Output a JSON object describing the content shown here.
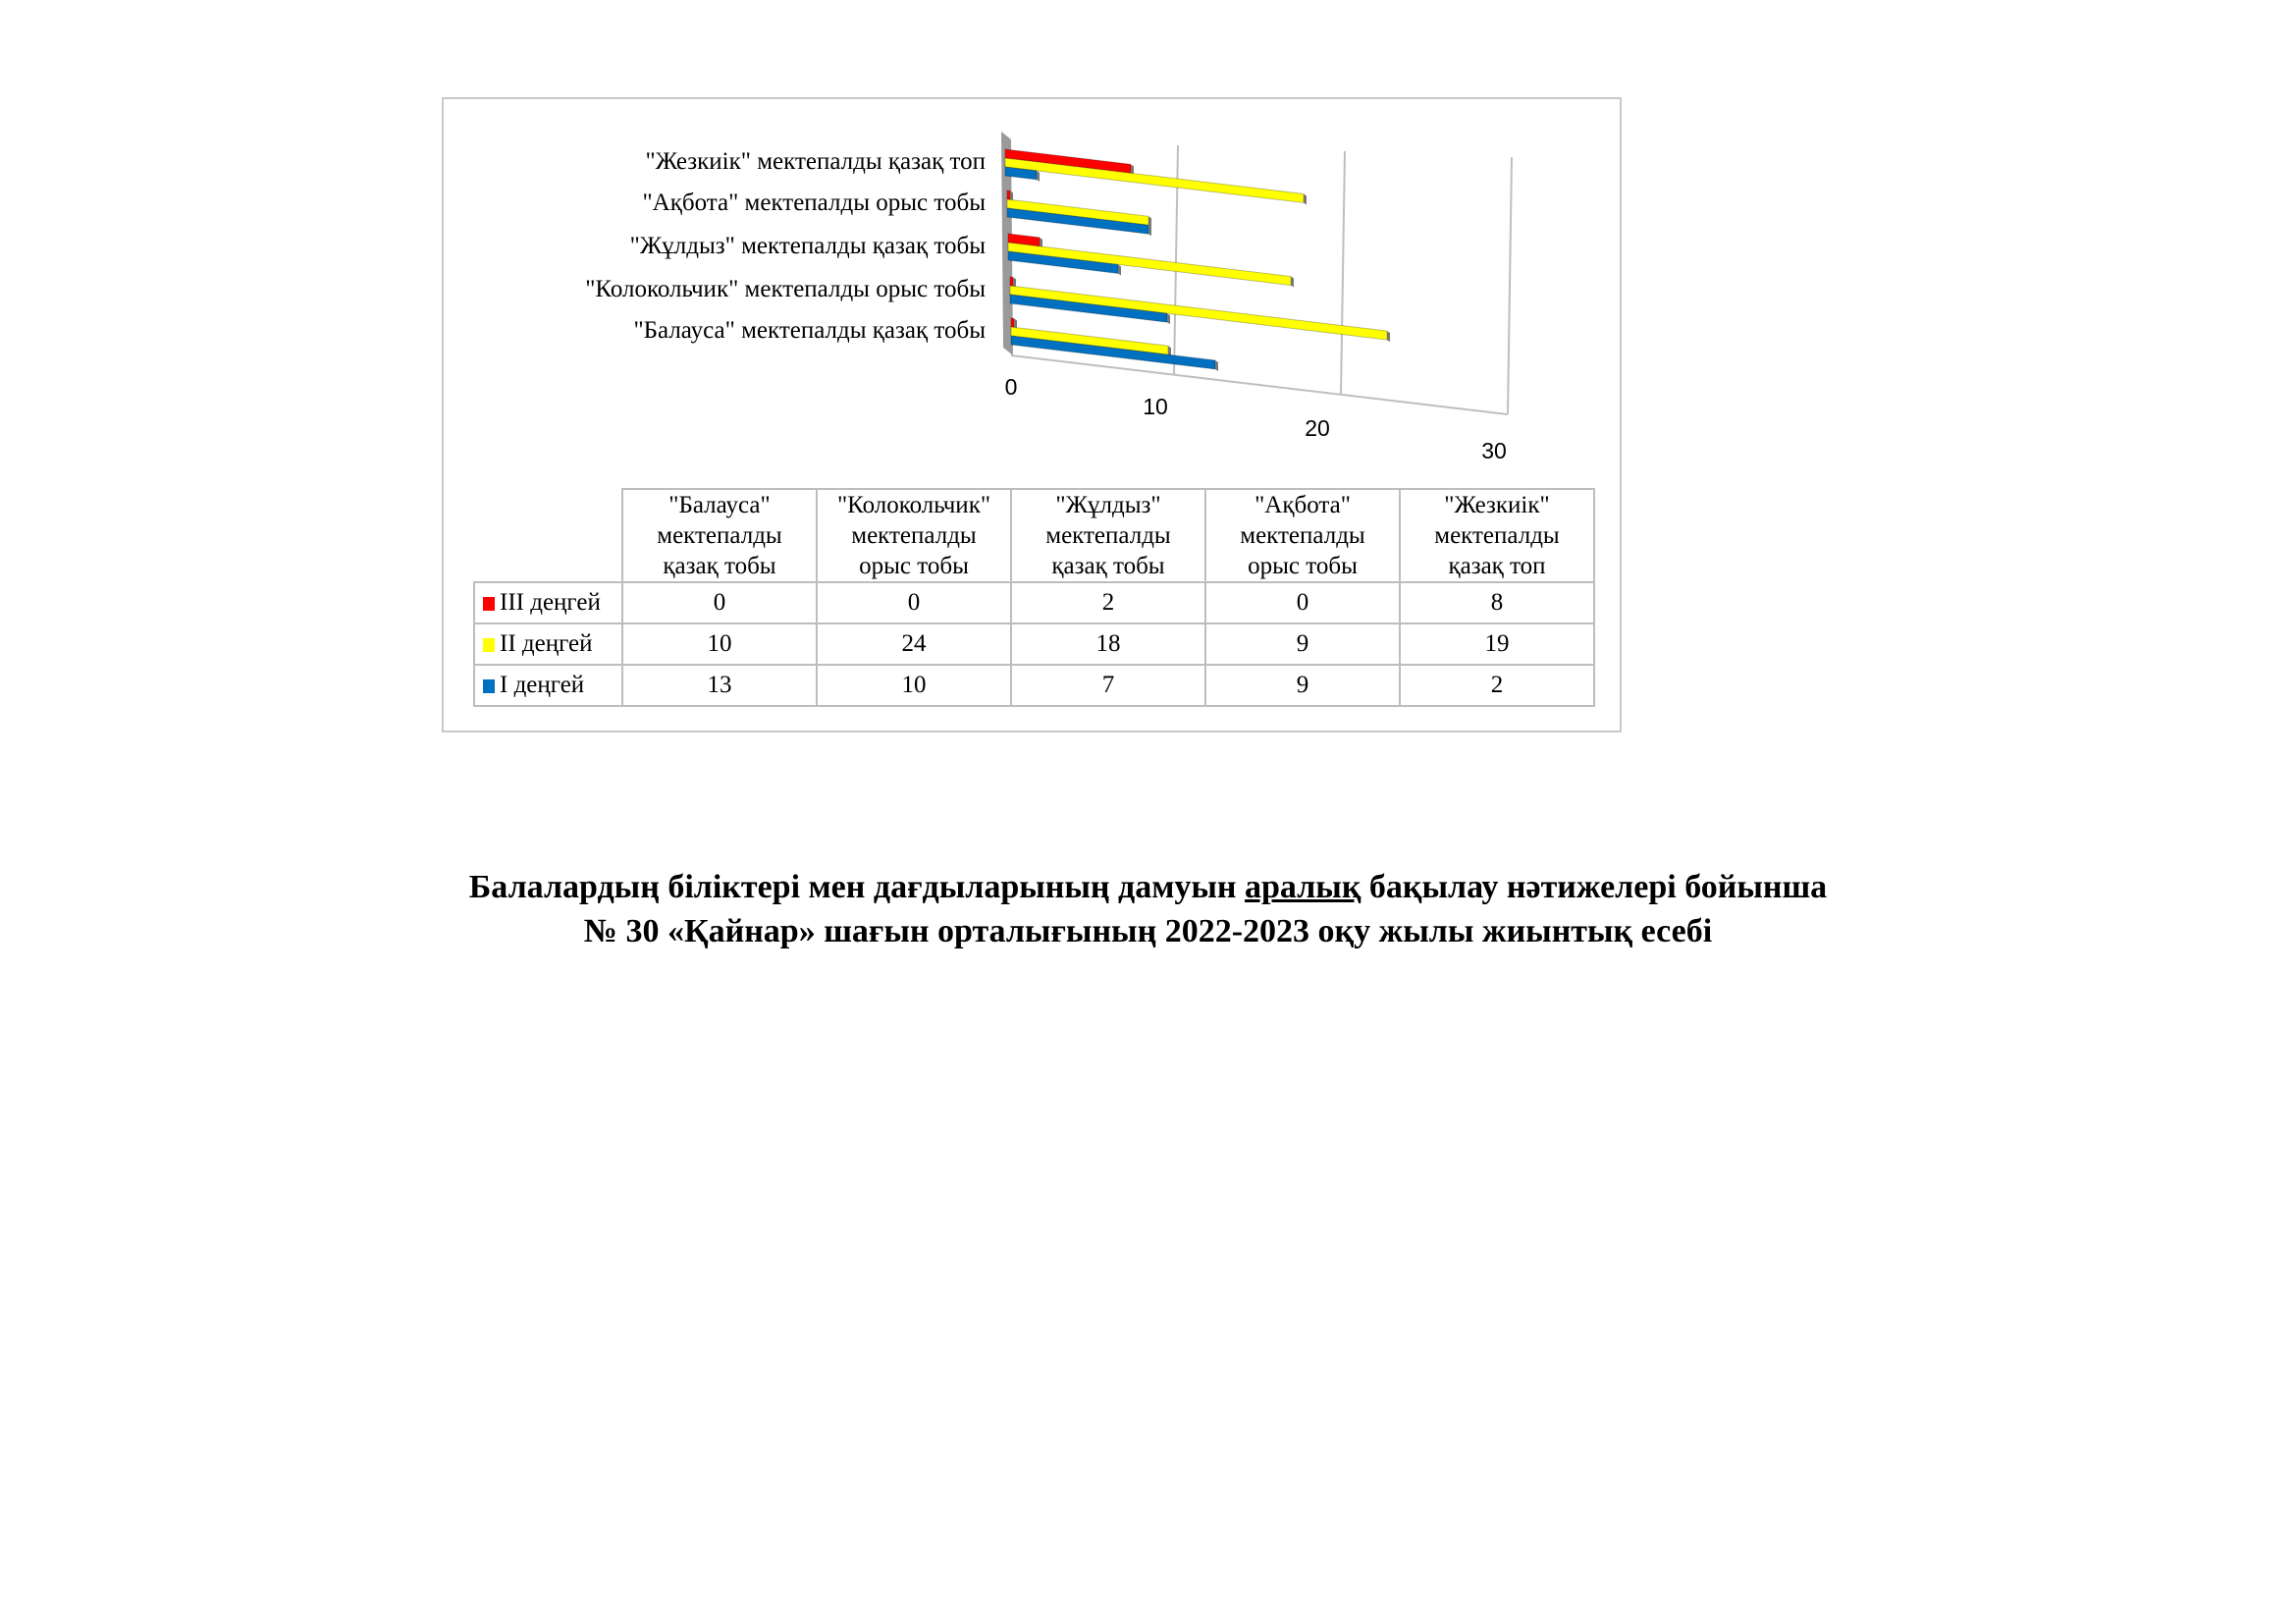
{
  "chart_data": {
    "type": "bar",
    "orientation": "horizontal",
    "style": "3d-clustered",
    "categories": [
      "\"Балауса\" мектепалды қазақ тобы",
      "\"Колокольчик\" мектепалды орыс тобы",
      "\"Жұлдыз\" мектепалды қазақ тобы",
      "\"Ақбота\" мектепалды орыс  тобы",
      "\"Жезкиік\" мектепалды қазақ топ"
    ],
    "table_headers": [
      [
        "\"Балауса\"",
        "мектепалды",
        "қазақ тобы"
      ],
      [
        "\"Колокольчик\"",
        "мектепалды",
        "орыс тобы"
      ],
      [
        "\"Жұлдыз\"",
        "мектепалды",
        "қазақ тобы"
      ],
      [
        "\"Ақбота\"",
        "мектепалды",
        "орыс  тобы"
      ],
      [
        "\"Жезкиік\"",
        "мектепалды",
        "қазақ топ"
      ]
    ],
    "series": [
      {
        "name": "III деңгей",
        "color": "#ff0000",
        "values": [
          0,
          0,
          2,
          0,
          8
        ]
      },
      {
        "name": "II деңгей",
        "color": "#ffff00",
        "values": [
          10,
          24,
          18,
          9,
          19
        ]
      },
      {
        "name": "I деңгей",
        "color": "#0070c0",
        "values": [
          13,
          10,
          7,
          9,
          2
        ]
      }
    ],
    "xlim": [
      0,
      30
    ],
    "x_ticks": [
      "0",
      "10",
      "20",
      "30"
    ],
    "grid": true,
    "legend": "data-table"
  },
  "caption": {
    "line1_before": "Балалардың біліктері мен дағдыларының дамуын ",
    "line1_underlined": "аралық",
    "line1_after": " бақылау нәтижелері бойынша",
    "line2": "№ 30 «Қайнар» шағын орталығының 2022-2023 оқу жылы жиынтық есебі"
  }
}
